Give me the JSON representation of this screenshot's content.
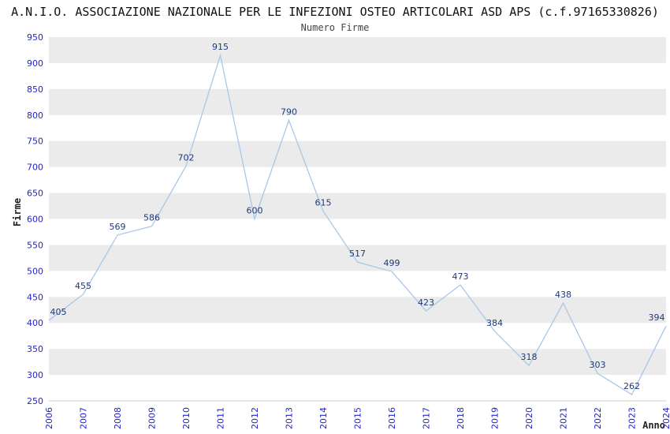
{
  "chart_data": {
    "type": "line",
    "title": "A.N.I.O. ASSOCIAZIONE NAZIONALE PER LE INFEZIONI OSTEO ARTICOLARI ASD APS (c.f.97165330826)",
    "subtitle": "Numero Firme",
    "ylabel": "Firme",
    "xlabel": "Anno",
    "categories": [
      "2006",
      "2007",
      "2008",
      "2009",
      "2010",
      "2011",
      "2012",
      "2013",
      "2014",
      "2015",
      "2016",
      "2017",
      "2018",
      "2019",
      "2020",
      "2021",
      "2022",
      "2023",
      "2024"
    ],
    "values": [
      405,
      455,
      569,
      586,
      702,
      915,
      600,
      790,
      615,
      517,
      499,
      423,
      473,
      384,
      318,
      438,
      303,
      262,
      394
    ],
    "ylim": [
      250,
      950
    ],
    "ytick_step": 50,
    "grid": "horizontal-bands",
    "legend": "none",
    "line_color": "#a9c7e8",
    "tick_color": "#2424c8",
    "label_color": "#1f3a7a",
    "band_color": "#ebebeb",
    "axis_line_color": "#cccccc"
  }
}
